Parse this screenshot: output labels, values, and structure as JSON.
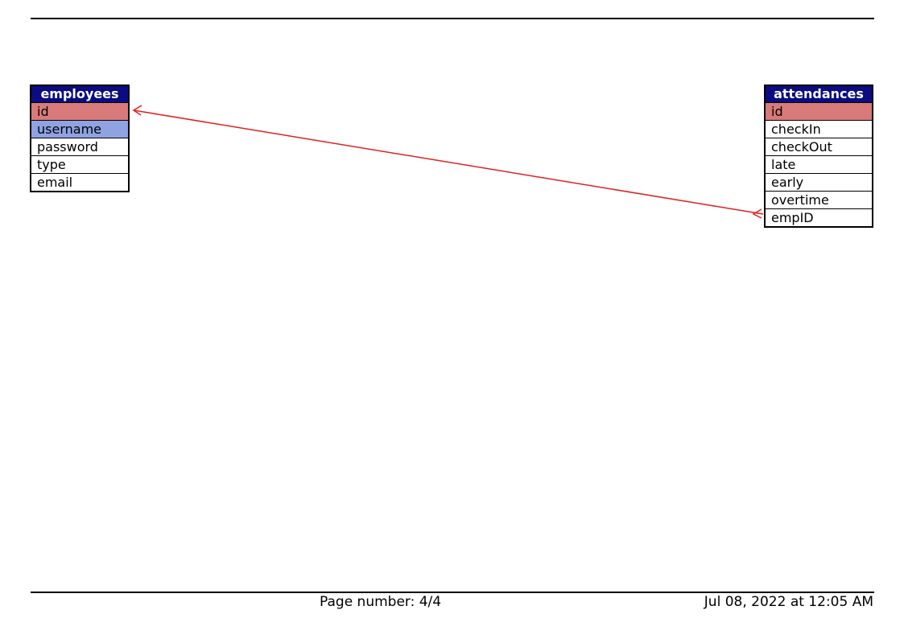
{
  "tables": {
    "employees": {
      "name": "employees",
      "columns": [
        "id",
        "username",
        "password",
        "type",
        "email"
      ]
    },
    "attendances": {
      "name": "attendances",
      "columns": [
        "id",
        "checkIn",
        "checkOut",
        "late",
        "early",
        "overtime",
        "empID"
      ]
    }
  },
  "relations": [
    {
      "from": "attendances.empID",
      "to": "employees.id",
      "color": "#e02020"
    }
  ],
  "colors": {
    "header": "#0b0b82",
    "primary_key": "#d97a7a",
    "unique_key": "#8fa2e2"
  },
  "footer": {
    "page_number": "Page number: 4/4",
    "timestamp": "Jul 08, 2022 at 12:05 AM"
  }
}
